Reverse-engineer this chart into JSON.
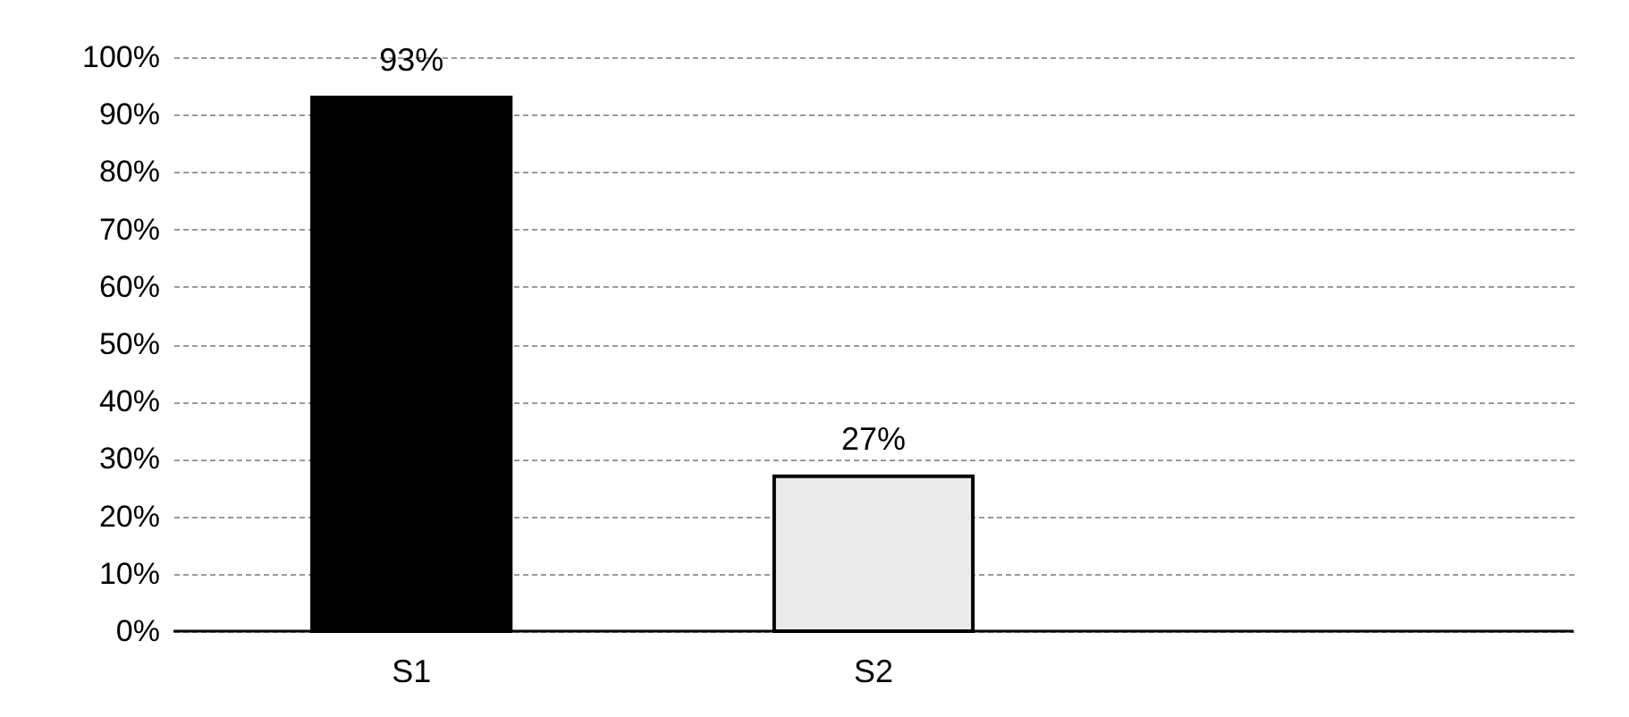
{
  "chart_data": {
    "type": "bar",
    "categories": [
      "S1",
      "S2",
      null
    ],
    "values": [
      93,
      27,
      null
    ],
    "colors": [
      "#000000",
      "#ebebeb",
      null
    ],
    "value_labels": [
      "93%",
      "27%",
      null
    ],
    "ylim": [
      0,
      100
    ],
    "yticks": [
      {
        "value": 0,
        "label": "0%"
      },
      {
        "value": 10,
        "label": "10%"
      },
      {
        "value": 20,
        "label": "20%"
      },
      {
        "value": 30,
        "label": "30%"
      },
      {
        "value": 40,
        "label": "40%"
      },
      {
        "value": 50,
        "label": "50%"
      },
      {
        "value": 60,
        "label": "60%"
      },
      {
        "value": 70,
        "label": "70%"
      },
      {
        "value": 80,
        "label": "80%"
      },
      {
        "value": 90,
        "label": "90%"
      },
      {
        "value": 100,
        "label": "100%"
      }
    ],
    "grid": "y"
  }
}
